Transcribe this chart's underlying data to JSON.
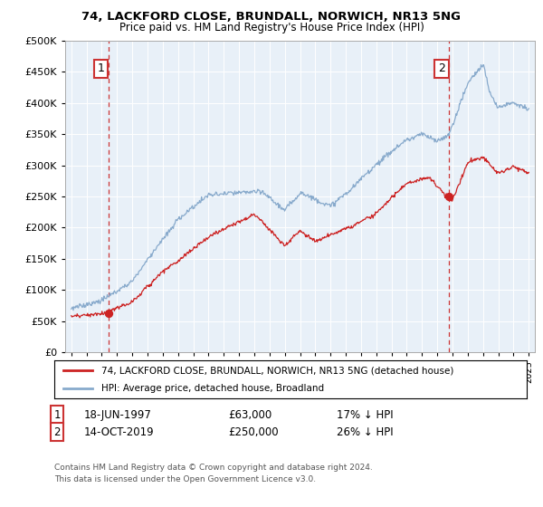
{
  "title": "74, LACKFORD CLOSE, BRUNDALL, NORWICH, NR13 5NG",
  "subtitle": "Price paid vs. HM Land Registry's House Price Index (HPI)",
  "ylim": [
    0,
    500000
  ],
  "yticks": [
    0,
    50000,
    100000,
    150000,
    200000,
    250000,
    300000,
    350000,
    400000,
    450000,
    500000
  ],
  "xlim_min": 1994.6,
  "xlim_max": 2025.4,
  "bg_color": "#e8f0f8",
  "sale1_date": 1997.46,
  "sale1_price": 63000,
  "sale2_date": 2019.79,
  "sale2_price": 250000,
  "red_color": "#cc2222",
  "blue_color": "#88aacc",
  "vline_color": "#cc3333",
  "legend_label_red": "74, LACKFORD CLOSE, BRUNDALL, NORWICH, NR13 5NG (detached house)",
  "legend_label_blue": "HPI: Average price, detached house, Broadland",
  "ann1_date": "18-JUN-1997",
  "ann1_price": "£63,000",
  "ann1_hpi": "17% ↓ HPI",
  "ann2_date": "14-OCT-2019",
  "ann2_price": "£250,000",
  "ann2_hpi": "26% ↓ HPI",
  "footer": "Contains HM Land Registry data © Crown copyright and database right 2024.\nThis data is licensed under the Open Government Licence v3.0."
}
